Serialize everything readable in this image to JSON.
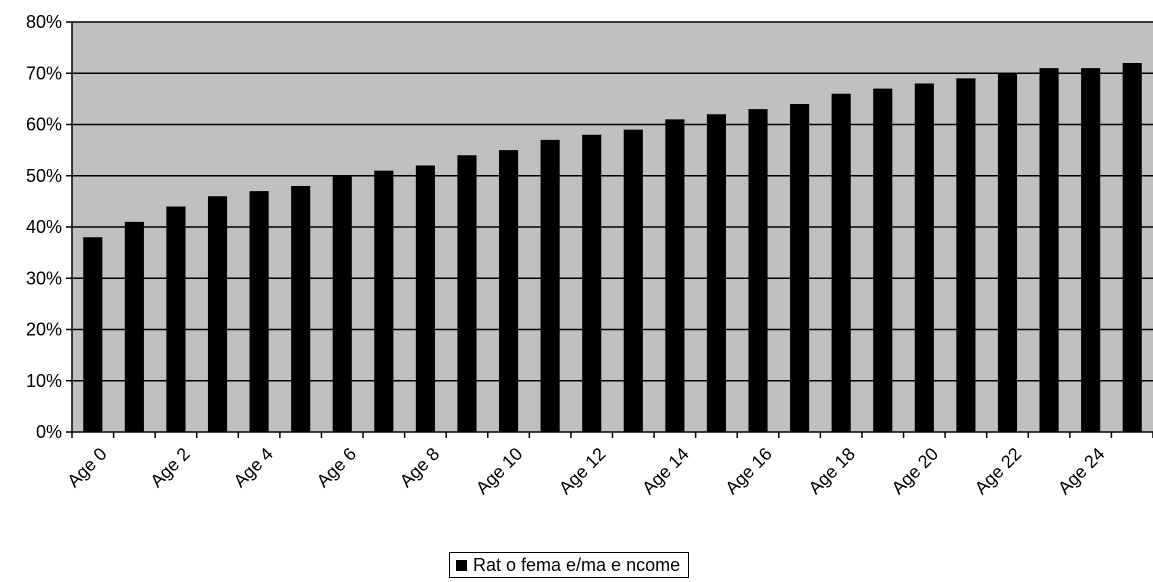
{
  "chart_data": {
    "type": "bar",
    "categories": [
      "Age 0",
      "Age 1",
      "Age 2",
      "Age 3",
      "Age 4",
      "Age 5",
      "Age 6",
      "Age 7",
      "Age 8",
      "Age 9",
      "Age 10",
      "Age 11",
      "Age 12",
      "Age 13",
      "Age 14",
      "Age 15",
      "Age 16",
      "Age 17",
      "Age 18",
      "Age 19",
      "Age 20",
      "Age 21",
      "Age 22",
      "Age 23",
      "Age 24",
      "Age 25"
    ],
    "x_tick_labels": [
      "Age 0",
      "Age 2",
      "Age 4",
      "Age 6",
      "Age 8",
      "Age 10",
      "Age 12",
      "Age 14",
      "Age 16",
      "Age 18",
      "Age 20",
      "Age 22",
      "Age 24"
    ],
    "series": [
      {
        "name": "Rat o fema e/ma e ncome",
        "values": [
          0.38,
          0.41,
          0.44,
          0.46,
          0.47,
          0.48,
          0.5,
          0.51,
          0.52,
          0.54,
          0.55,
          0.57,
          0.58,
          0.59,
          0.61,
          0.62,
          0.63,
          0.64,
          0.66,
          0.67,
          0.68,
          0.69,
          0.7,
          0.71,
          0.71,
          0.72
        ]
      }
    ],
    "y_ticks": [
      "0%",
      "10%",
      "20%",
      "30%",
      "40%",
      "50%",
      "60%",
      "70%",
      "80%"
    ],
    "ylim": [
      0,
      0.8
    ],
    "grid": true,
    "legend_position": "bottom-center",
    "colors": {
      "bar": "#000000",
      "plot_background": "#c0c0c0",
      "gridline": "#000000"
    }
  }
}
